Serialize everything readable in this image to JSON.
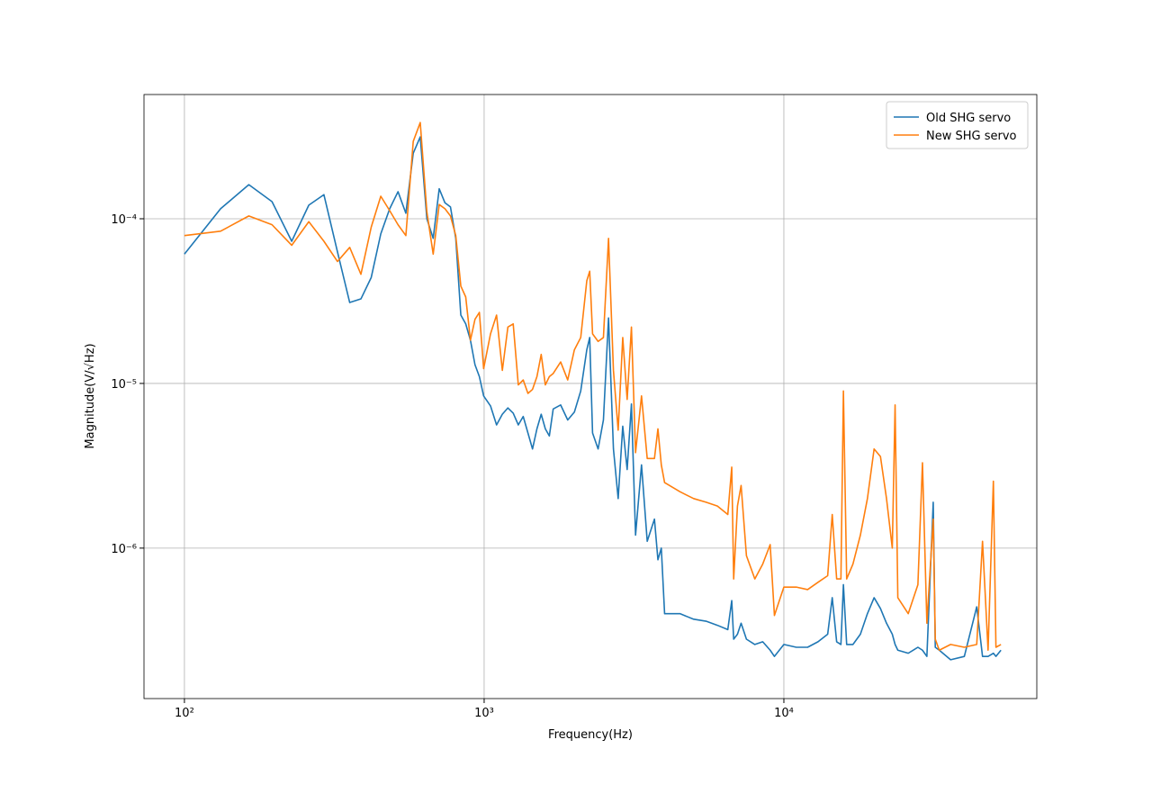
{
  "chart_data": {
    "type": "line",
    "xlabel": "Frequency(Hz)",
    "ylabel": "Magnitude(V/√Hz)",
    "xscale": "log",
    "yscale": "log",
    "grid": true,
    "legend": "upper right",
    "xlim": [
      73.3,
      69800
    ],
    "ylim": [
      1.22e-07,
      0.000568
    ],
    "xticks": [
      {
        "value": 100,
        "label": "10²"
      },
      {
        "value": 1000,
        "label": "10³"
      },
      {
        "value": 10000,
        "label": "10⁴"
      }
    ],
    "yticks": [
      {
        "value": 1e-06,
        "label": "10⁻⁶"
      },
      {
        "value": 1e-05,
        "label": "10⁻⁵"
      },
      {
        "value": 0.0001,
        "label": "10⁻⁴"
      }
    ],
    "x": [
      100,
      132,
      164,
      196,
      228,
      260,
      292,
      324,
      356,
      388,
      420,
      452,
      484,
      516,
      548,
      580,
      612,
      644,
      676,
      708,
      740,
      772,
      804,
      836,
      868,
      900,
      932,
      964,
      996,
      1050,
      1100,
      1150,
      1200,
      1250,
      1300,
      1350,
      1400,
      1450,
      1500,
      1550,
      1600,
      1650,
      1700,
      1800,
      1900,
      2000,
      2100,
      2200,
      2250,
      2300,
      2400,
      2500,
      2600,
      2700,
      2800,
      2900,
      3000,
      3100,
      3200,
      3350,
      3500,
      3700,
      3800,
      3900,
      4000,
      4500,
      5000,
      5500,
      6000,
      6500,
      6700,
      6800,
      7000,
      7200,
      7500,
      8000,
      8500,
      9000,
      9300,
      10000,
      11000,
      12000,
      13000,
      14000,
      14500,
      15000,
      15500,
      15800,
      16200,
      17000,
      18000,
      19000,
      20000,
      21000,
      22000,
      23000,
      23500,
      24000,
      26000,
      28000,
      29000,
      30000,
      31500,
      32000,
      33000,
      36000,
      40000,
      44000,
      46000,
      48000,
      50000,
      51000,
      53000
    ],
    "series": [
      {
        "name": "Old SHG servo",
        "color": "#1f77b4",
        "values": [
          6.1e-05,
          0.000115,
          0.000161,
          0.000127,
          7.3e-05,
          0.000121,
          0.00014,
          6.3e-05,
          3.1e-05,
          3.26e-05,
          4.4e-05,
          8.1e-05,
          0.000115,
          0.000146,
          0.000108,
          0.00025,
          0.000314,
          0.0001,
          7.6e-05,
          0.000152,
          0.000125,
          0.000118,
          7.6e-05,
          2.6e-05,
          2.3e-05,
          1.83e-05,
          1.3e-05,
          1.1e-05,
          8.4e-06,
          7.3e-06,
          5.6e-06,
          6.5e-06,
          7.1e-06,
          6.6e-06,
          5.6e-06,
          6.3e-06,
          5e-06,
          4e-06,
          5.3e-06,
          6.5e-06,
          5.3e-06,
          4.8e-06,
          7e-06,
          7.4e-06,
          6e-06,
          6.7e-06,
          9e-06,
          1.6e-05,
          1.9e-05,
          5e-06,
          4e-06,
          6e-06,
          2.5e-05,
          4e-06,
          2e-06,
          5.5e-06,
          3e-06,
          7.5e-06,
          1.2e-06,
          3.2e-06,
          1.1e-06,
          1.5e-06,
          8.5e-07,
          1e-06,
          4e-07,
          4e-07,
          3.7e-07,
          3.6e-07,
          3.4e-07,
          3.2e-07,
          4.8e-07,
          2.8e-07,
          3e-07,
          3.5e-07,
          2.8e-07,
          2.6e-07,
          2.7e-07,
          2.4e-07,
          2.2e-07,
          2.6e-07,
          2.5e-07,
          2.5e-07,
          2.7e-07,
          3e-07,
          5e-07,
          2.7e-07,
          2.6e-07,
          6e-07,
          2.6e-07,
          2.6e-07,
          3e-07,
          4e-07,
          5e-07,
          4.3e-07,
          3.5e-07,
          3e-07,
          2.6e-07,
          2.4e-07,
          2.3e-07,
          2.5e-07,
          2.4e-07,
          2.2e-07,
          1.9e-06,
          2.5e-07,
          2.4e-07,
          2.1e-07,
          2.2e-07,
          4.4e-07,
          2.2e-07,
          2.2e-07,
          2.3e-07,
          2.2e-07,
          2.4e-07
        ]
      },
      {
        "name": "New SHG servo",
        "color": "#ff7f0e",
        "values": [
          7.9e-05,
          8.4e-05,
          0.000104,
          9.2e-05,
          6.9e-05,
          9.6e-05,
          7.3e-05,
          5.5e-05,
          6.7e-05,
          4.6e-05,
          8.9e-05,
          0.000137,
          0.000112,
          9.2e-05,
          7.9e-05,
          0.000295,
          0.000384,
          0.00011,
          6.1e-05,
          0.000122,
          0.000115,
          0.000104,
          7.9e-05,
          3.9e-05,
          3.35e-05,
          1.83e-05,
          2.45e-05,
          2.7e-05,
          1.23e-05,
          2e-05,
          2.6e-05,
          1.2e-05,
          2.2e-05,
          2.3e-05,
          9.8e-06,
          1.05e-05,
          8.7e-06,
          9.2e-06,
          1.1e-05,
          1.5e-05,
          9.8e-06,
          1.1e-05,
          1.15e-05,
          1.35e-05,
          1.05e-05,
          1.6e-05,
          1.9e-05,
          4.2e-05,
          4.8e-05,
          2e-05,
          1.8e-05,
          1.9e-05,
          7.6e-05,
          1.2e-05,
          5.2e-06,
          1.9e-05,
          8e-06,
          2.2e-05,
          3.8e-06,
          8.4e-06,
          3.5e-06,
          3.5e-06,
          5.3e-06,
          3.2e-06,
          2.5e-06,
          2.2e-06,
          2e-06,
          1.9e-06,
          1.8e-06,
          1.6e-06,
          3.1e-06,
          6.5e-07,
          1.8e-06,
          2.4e-06,
          9e-07,
          6.5e-07,
          8e-07,
          1.05e-06,
          3.9e-07,
          5.8e-07,
          5.8e-07,
          5.6e-07,
          6.2e-07,
          6.8e-07,
          1.6e-06,
          6.5e-07,
          6.5e-07,
          9e-06,
          6.5e-07,
          8e-07,
          1.2e-06,
          2e-06,
          4e-06,
          3.6e-06,
          2e-06,
          1e-06,
          7.4e-06,
          5e-07,
          4e-07,
          6e-07,
          3.3e-06,
          3.5e-07,
          1.5e-06,
          2.8e-07,
          2.4e-07,
          2.6e-07,
          2.5e-07,
          2.6e-07,
          1.1e-06,
          2.4e-07,
          2.55e-06,
          2.5e-07,
          2.6e-07
        ]
      }
    ]
  }
}
